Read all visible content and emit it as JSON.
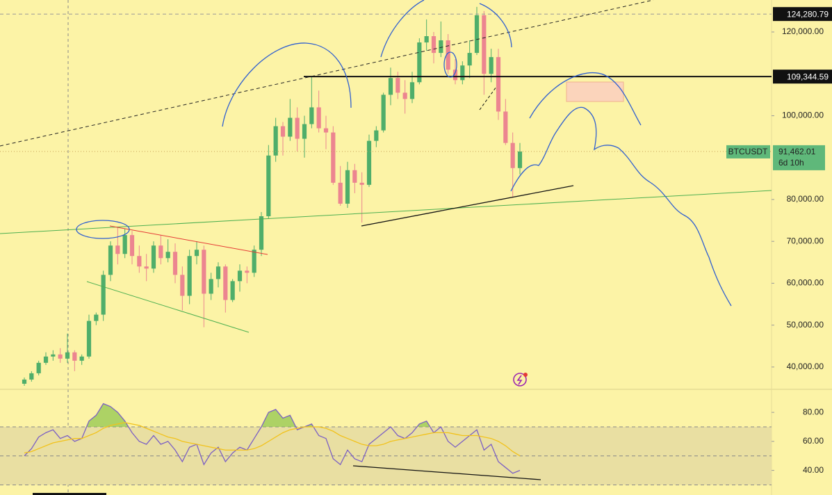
{
  "chart_data": [
    {
      "type": "candlestick",
      "series": [
        {
          "name": "BTCUSDT",
          "open": [
            36000,
            37000,
            38500,
            41000,
            42500,
            43000,
            42000,
            43500,
            41500,
            42500,
            51000,
            52500,
            62000,
            69000,
            67000,
            71500,
            66500,
            64000,
            63500,
            69000,
            66000,
            67500,
            62000,
            57000,
            66500,
            68000,
            57500,
            61000,
            64000,
            56000,
            60500,
            63000,
            62500,
            68000,
            76000,
            90500,
            97500,
            95000,
            99500,
            94500,
            98000,
            102000,
            97000,
            96000,
            84000,
            79000,
            87000,
            84000,
            83500,
            94000,
            96500,
            105000,
            109000,
            105500,
            104000,
            108000,
            117500,
            119000,
            115000,
            118000,
            111000,
            108500,
            112000,
            115000,
            124000,
            110000,
            114000,
            101000,
            93500,
            87500
          ],
          "high": [
            37500,
            39000,
            41500,
            43500,
            44000,
            44500,
            48000,
            44000,
            43000,
            52500,
            53000,
            63000,
            70000,
            73500,
            73000,
            72500,
            69000,
            67000,
            70000,
            71500,
            70500,
            69500,
            64000,
            68000,
            70000,
            69000,
            62500,
            65000,
            64500,
            61000,
            64500,
            64000,
            69000,
            77000,
            93000,
            99500,
            98500,
            104000,
            102000,
            100000,
            109500,
            106000,
            100000,
            97500,
            88000,
            89000,
            88500,
            86500,
            95500,
            97500,
            105500,
            111500,
            110500,
            108500,
            110500,
            118500,
            123000,
            120000,
            122500,
            119500,
            113500,
            113000,
            118000,
            126000,
            125000,
            116000,
            116000,
            104000,
            96000,
            93500
          ],
          "low": [
            35500,
            36500,
            38000,
            40500,
            41500,
            41000,
            41000,
            39000,
            40500,
            42000,
            50000,
            51000,
            60500,
            64500,
            66000,
            64500,
            62500,
            60500,
            62500,
            64500,
            65000,
            60000,
            53500,
            55000,
            64500,
            49500,
            56000,
            59000,
            53000,
            55500,
            58000,
            60000,
            61500,
            66500,
            75500,
            89000,
            90500,
            94000,
            91500,
            90000,
            97000,
            96000,
            92000,
            83500,
            78500,
            78000,
            81500,
            74500,
            83000,
            92500,
            96000,
            102500,
            104000,
            100500,
            103000,
            107500,
            115500,
            112500,
            114000,
            110000,
            107500,
            107500,
            109000,
            114500,
            105000,
            108000,
            99000,
            93000,
            80500,
            86000
          ],
          "close": [
            37000,
            38500,
            41000,
            42500,
            43000,
            42000,
            43500,
            41500,
            42500,
            51000,
            52500,
            62000,
            69000,
            67000,
            71500,
            66500,
            64000,
            63500,
            69000,
            66000,
            67500,
            62000,
            57000,
            66500,
            68000,
            57500,
            61000,
            64000,
            56000,
            60500,
            63000,
            62500,
            68000,
            76000,
            90500,
            97500,
            95000,
            99500,
            94500,
            98000,
            102000,
            97000,
            96000,
            84000,
            79000,
            87000,
            84000,
            83500,
            94000,
            96500,
            105000,
            109000,
            105500,
            104000,
            108000,
            117500,
            119000,
            115000,
            118000,
            111000,
            108500,
            112000,
            115000,
            124000,
            110000,
            114000,
            101000,
            93500,
            87500,
            91462.01
          ]
        }
      ],
      "up_color": "#4fae6a",
      "down_color": "#ec8590",
      "ylim": [
        35000,
        127635
      ],
      "yticks": [
        {
          "value": 120000,
          "label": "120,000.00"
        },
        {
          "value": 100000,
          "label": "100,000.00"
        },
        {
          "value": 80000,
          "label": "80,000.00"
        },
        {
          "value": 70000,
          "label": "70,000.00"
        },
        {
          "value": 60000,
          "label": "60,000.00"
        },
        {
          "value": 50000,
          "label": "50,000.00"
        },
        {
          "value": 40000,
          "label": "40,000.00"
        }
      ],
      "price_lines": [
        {
          "value": 124280.79,
          "label": "124,280.79"
        },
        {
          "value": 109344.59,
          "label": "109,344.59"
        }
      ],
      "last_price": {
        "value": 91462.01,
        "label": "91,462.01"
      },
      "countdown": "6d 10h"
    },
    {
      "type": "line",
      "series": [
        {
          "color": "#7b5fc4",
          "values": [
            50,
            55,
            63,
            66,
            68,
            62,
            64,
            60,
            62,
            74,
            78,
            86,
            84,
            80,
            74,
            66,
            60,
            58,
            64,
            58,
            60,
            54,
            46,
            56,
            58,
            44,
            52,
            56,
            46,
            52,
            56,
            54,
            62,
            70,
            80,
            82,
            76,
            78,
            68,
            70,
            72,
            64,
            62,
            48,
            44,
            54,
            48,
            46,
            58,
            62,
            66,
            70,
            64,
            62,
            66,
            72,
            74,
            66,
            70,
            60,
            56,
            60,
            64,
            68,
            54,
            58,
            46,
            42,
            38,
            40
          ]
        },
        {
          "color": "#f2c21b",
          "values": [
            52,
            53,
            55,
            57,
            59,
            60,
            61,
            62,
            62,
            64,
            66,
            69,
            71,
            72,
            73,
            72,
            71,
            69,
            67,
            65,
            63,
            62,
            60,
            59,
            58,
            57,
            56,
            55,
            54,
            54,
            54,
            54,
            55,
            57,
            60,
            63,
            66,
            68,
            69,
            70,
            70,
            70,
            69,
            67,
            64,
            62,
            60,
            58,
            57,
            57,
            58,
            60,
            61,
            62,
            63,
            64,
            65,
            66,
            66,
            66,
            65,
            64,
            64,
            64,
            63,
            62,
            60,
            57,
            53,
            50
          ]
        }
      ],
      "ylim": [
        24,
        95.4
      ],
      "yticks": [
        {
          "value": 80,
          "label": "80.00"
        },
        {
          "value": 60,
          "label": "60.00"
        },
        {
          "value": 40,
          "label": "40.00"
        }
      ],
      "levels": [
        70,
        50,
        30
      ]
    }
  ]
}
